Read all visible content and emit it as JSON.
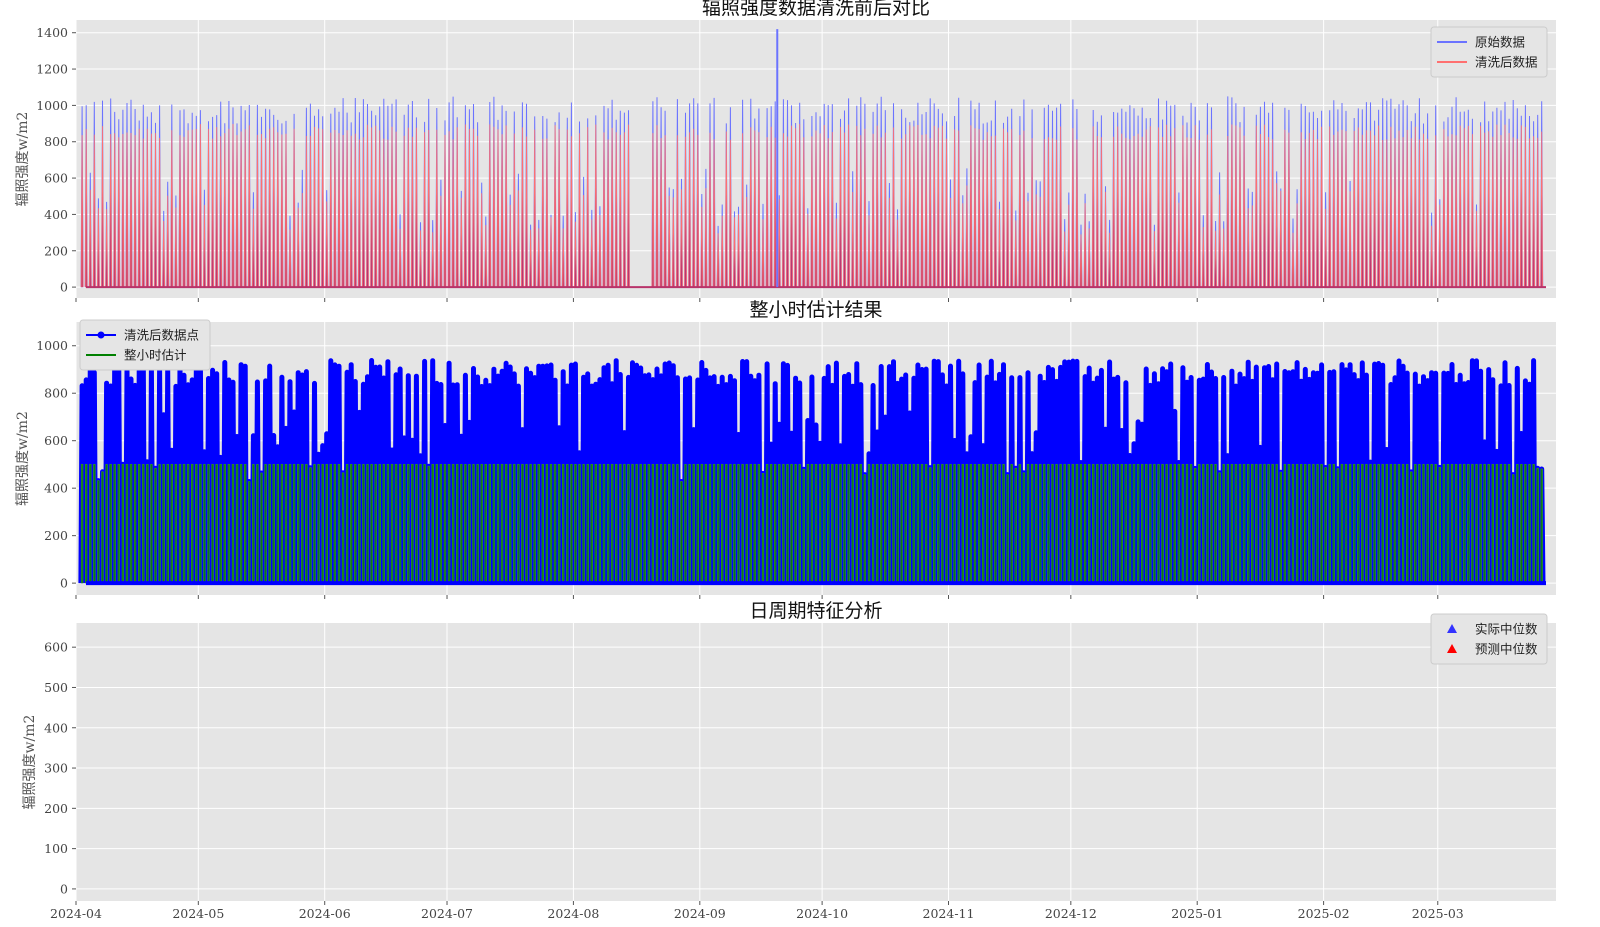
{
  "chart_data": [
    {
      "type": "line",
      "title": "辐照强度数据清洗前后对比",
      "xlabel": "",
      "ylabel": "辐照强度w/m2",
      "ylim": [
        -60,
        1470
      ],
      "yticks": [
        0,
        200,
        400,
        600,
        800,
        1000,
        1200,
        1400
      ],
      "xlim": [
        "2024-04-01",
        "2025-03-30"
      ],
      "xticks": [],
      "legend_position": "top-right",
      "grid": true,
      "series": [
        {
          "name": "原始数据",
          "color": "#6b73ff",
          "daily_peak_approx": 1000,
          "max_spike": {
            "x": "2024-09-20",
            "y": 1420
          }
        },
        {
          "name": "清洗后数据",
          "color": "#ff7070",
          "daily_peak_approx": 880
        }
      ],
      "gaps": [
        {
          "from": "2024-08-15",
          "to": "2024-08-19"
        }
      ]
    },
    {
      "type": "line",
      "title": "整小时估计结果",
      "xlabel": "",
      "ylabel": "辐照强度w/m2",
      "ylim": [
        -50,
        1100
      ],
      "yticks": [
        0,
        200,
        400,
        600,
        800,
        1000
      ],
      "xlim": [
        "2024-04-01",
        "2025-03-30"
      ],
      "xticks": [],
      "legend_position": "top-left",
      "grid": true,
      "series": [
        {
          "name": "清洗后数据点",
          "color": "#0000ff",
          "marker": "o",
          "daily_peak_approx": 920
        },
        {
          "name": "整小时估计",
          "color": "#008000",
          "cap": 500
        }
      ]
    },
    {
      "type": "scatter",
      "title": "日周期特征分析",
      "xlabel": "",
      "ylabel": "辐照强度w/m2",
      "ylim": [
        -30,
        660
      ],
      "yticks": [
        0,
        100,
        200,
        300,
        400,
        500,
        600
      ],
      "xlim": [
        "2024-04-01",
        "2025-03-30"
      ],
      "xticks": [
        "2024-04",
        "2024-05",
        "2024-06",
        "2024-07",
        "2024-08",
        "2024-09",
        "2024-10",
        "2024-11",
        "2024-12",
        "2025-01",
        "2025-02",
        "2025-03"
      ],
      "legend_position": "top-right",
      "grid": true,
      "series": [
        {
          "name": "实际中位数",
          "color": "#3333ff",
          "marker": "^",
          "values": []
        },
        {
          "name": "预测中位数",
          "color": "#ff0000",
          "marker": "^",
          "values": []
        }
      ]
    }
  ]
}
